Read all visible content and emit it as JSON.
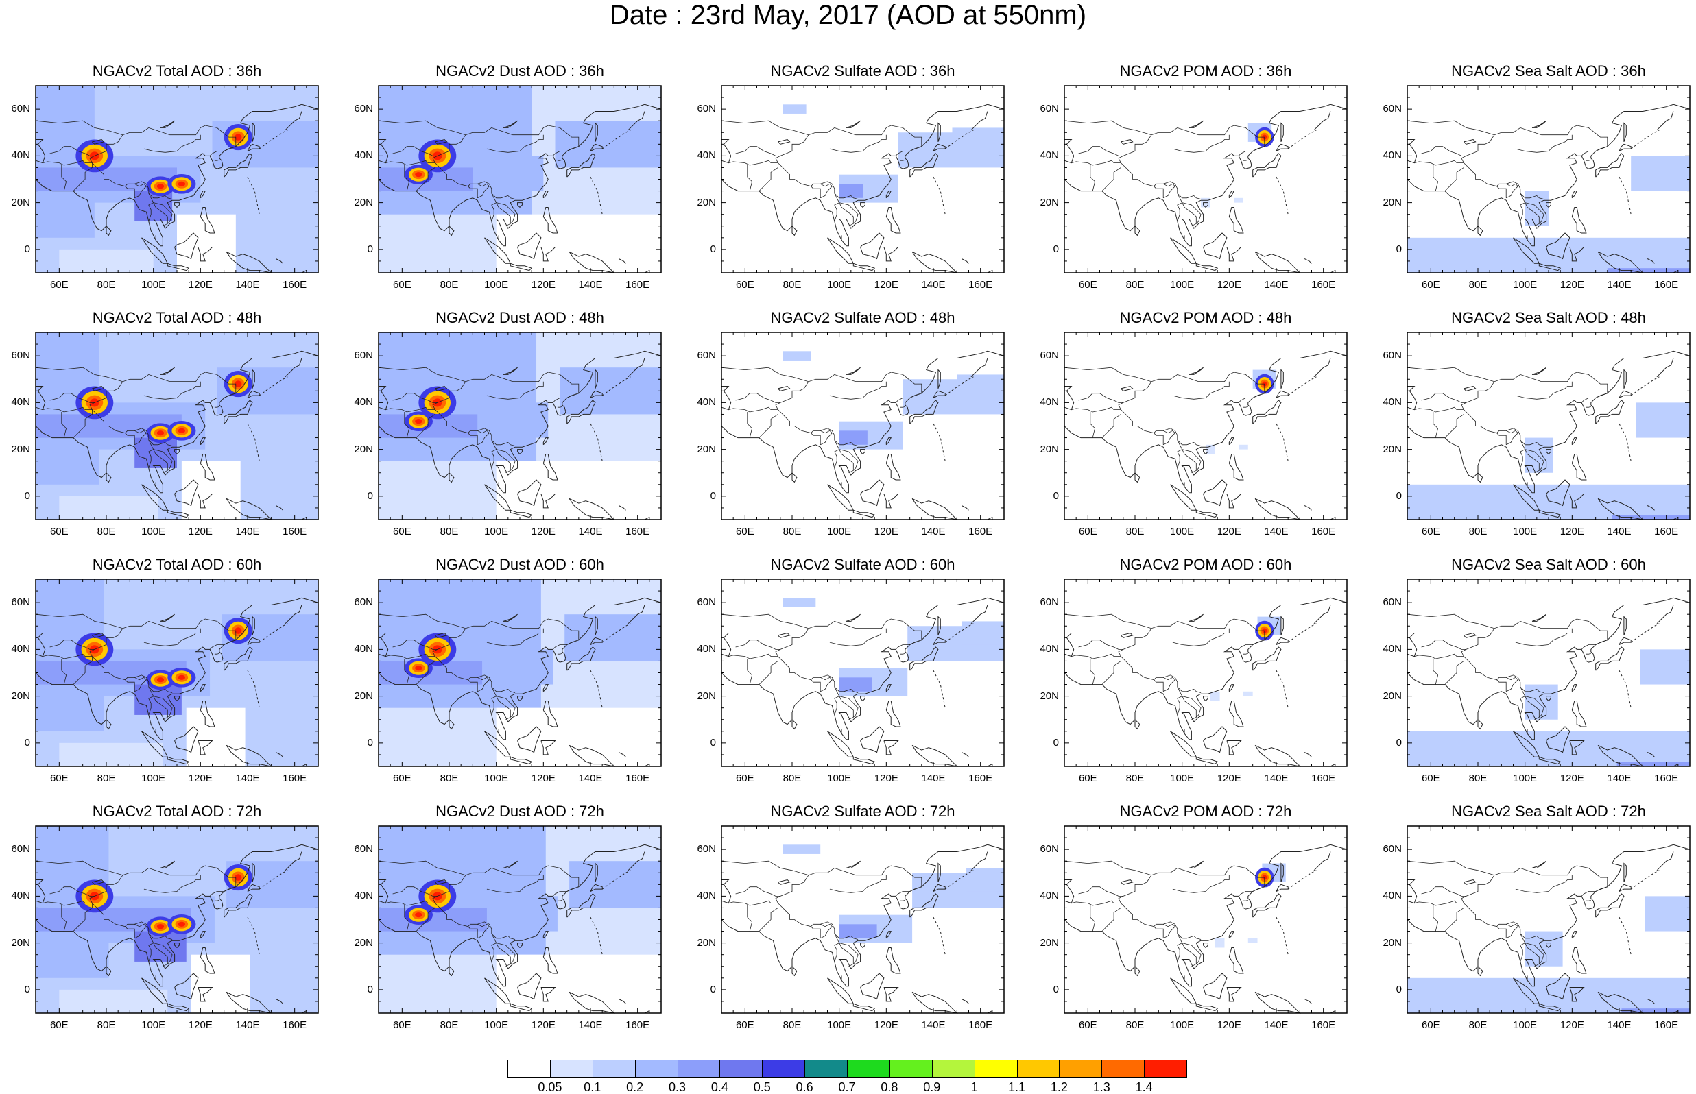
{
  "title": "Date : 23rd May, 2017 (AOD at 550nm)",
  "panel_titles": [
    [
      "NGACv2 Total AOD : 36h",
      "NGACv2 Dust AOD : 36h",
      "NGACv2 Sulfate AOD : 36h",
      "NGACv2 POM AOD : 36h",
      "NGACv2 Sea Salt AOD : 36h"
    ],
    [
      "NGACv2 Total AOD : 48h",
      "NGACv2 Dust AOD : 48h",
      "NGACv2 Sulfate AOD : 48h",
      "NGACv2 POM AOD : 48h",
      "NGACv2 Sea Salt AOD : 48h"
    ],
    [
      "NGACv2 Total AOD : 60h",
      "NGACv2 Dust AOD : 60h",
      "NGACv2 Sulfate AOD : 60h",
      "NGACv2 POM AOD : 60h",
      "NGACv2 Sea Salt AOD : 60h"
    ],
    [
      "NGACv2 Total AOD : 72h",
      "NGACv2 Dust AOD : 72h",
      "NGACv2 Sulfate AOD : 72h",
      "NGACv2 POM AOD : 72h",
      "NGACv2 Sea Salt  AOD : 72h"
    ]
  ],
  "lat_ticks": [
    "60N",
    "40N",
    "20N",
    "0"
  ],
  "lat_values": [
    60,
    40,
    20,
    0
  ],
  "lon_ticks": [
    "60E",
    "80E",
    "100E",
    "120E",
    "140E",
    "160E"
  ],
  "lon_values": [
    60,
    80,
    100,
    120,
    140,
    160
  ],
  "map_extent": {
    "lon": [
      50,
      170
    ],
    "lat": [
      -10,
      70
    ]
  },
  "colorbar": {
    "labels": [
      "0.05",
      "0.1",
      "0.2",
      "0.3",
      "0.4",
      "0.5",
      "0.6",
      "0.7",
      "0.8",
      "0.9",
      "1",
      "1.1",
      "1.2",
      "1.3",
      "1.4"
    ],
    "colors": [
      "#ffffff",
      "#d7e3ff",
      "#bccfff",
      "#a3baff",
      "#8c9efa",
      "#6f78ef",
      "#3c3ce6",
      "#128a8a",
      "#1eda1e",
      "#64f01e",
      "#b4f53c",
      "#ffff00",
      "#ffc800",
      "#ffa000",
      "#ff6a00",
      "#ff1e00"
    ]
  },
  "species": [
    "total",
    "dust",
    "sulfate",
    "pom",
    "seasalt"
  ]
}
